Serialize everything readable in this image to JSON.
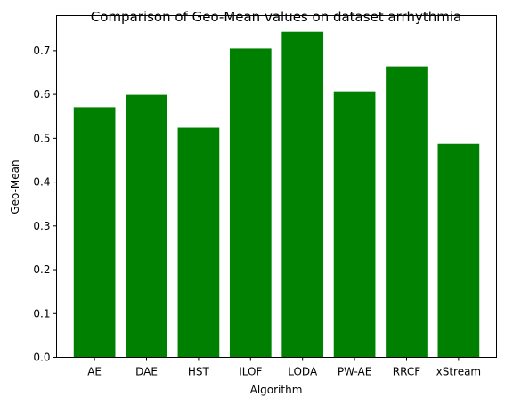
{
  "chart_data": {
    "type": "bar",
    "title": "Comparison of Geo-Mean values on dataset arrhythmia",
    "xlabel": "Algorithm",
    "ylabel": "Geo-Mean",
    "categories": [
      "AE",
      "DAE",
      "HST",
      "ILOF",
      "LODA",
      "PW-AE",
      "RRCF",
      "xStream"
    ],
    "values": [
      0.571,
      0.599,
      0.524,
      0.705,
      0.743,
      0.607,
      0.664,
      0.487
    ],
    "ylim": [
      0,
      0.78
    ],
    "yticks": [
      0.0,
      0.1,
      0.2,
      0.3,
      0.4,
      0.5,
      0.6,
      0.7
    ],
    "ytick_labels": [
      "0.0",
      "0.1",
      "0.2",
      "0.3",
      "0.4",
      "0.5",
      "0.6",
      "0.7"
    ],
    "bar_color": "#008000",
    "grid": false
  }
}
